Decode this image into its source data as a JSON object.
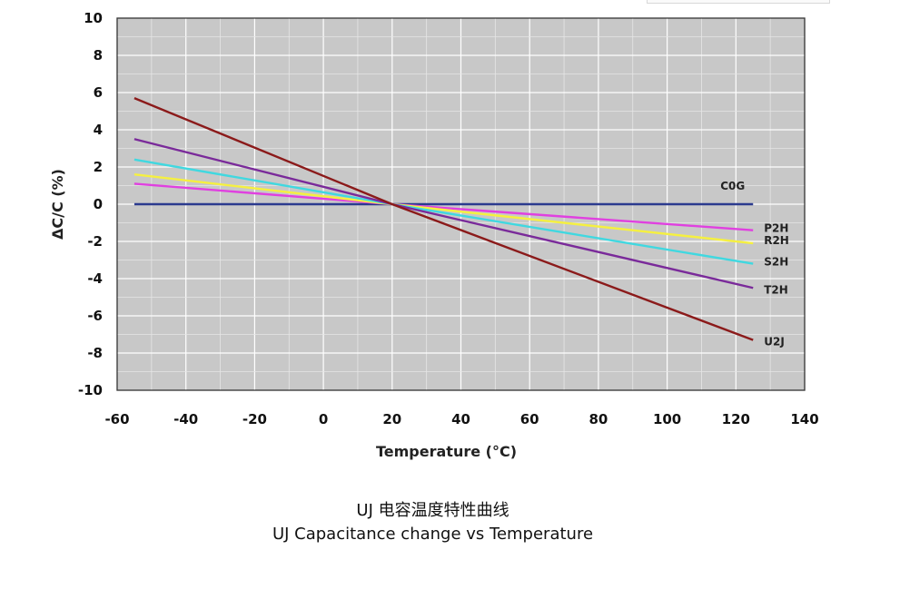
{
  "chart_data": {
    "type": "line",
    "xlabel": "Temperature (°C)",
    "ylabel": "ΔC/C (%)",
    "xlim": [
      -60,
      140
    ],
    "ylim": [
      -10,
      10
    ],
    "xticks": [
      -60,
      -40,
      -20,
      0,
      20,
      40,
      60,
      80,
      100,
      120,
      140
    ],
    "yticks": [
      10,
      8,
      6,
      4,
      2,
      0,
      -2,
      -4,
      -6,
      -8,
      -10
    ],
    "grid": true,
    "series": [
      {
        "name": "C0G",
        "color": "#2b3a8f",
        "x": [
          -55,
          125
        ],
        "values": [
          0,
          0
        ]
      },
      {
        "name": "P2H",
        "color": "#e040e0",
        "x": [
          -55,
          20,
          125
        ],
        "values": [
          1.1,
          0,
          -1.4
        ]
      },
      {
        "name": "R2H",
        "color": "#f5f040",
        "x": [
          -55,
          20,
          125
        ],
        "values": [
          1.6,
          0,
          -2.1
        ]
      },
      {
        "name": "S2H",
        "color": "#40d8e0",
        "x": [
          -55,
          20,
          125
        ],
        "values": [
          2.4,
          0,
          -3.2
        ]
      },
      {
        "name": "T2H",
        "color": "#7a2a9a",
        "x": [
          -55,
          20,
          125
        ],
        "values": [
          3.5,
          0,
          -4.5
        ]
      },
      {
        "name": "U2J",
        "color": "#8b1a1a",
        "x": [
          -55,
          20,
          125
        ],
        "values": [
          5.7,
          0,
          -7.3
        ]
      }
    ]
  },
  "caption": {
    "line1": "UJ 电容温度特性曲线",
    "line2": "UJ Capacitance change vs Temperature"
  }
}
